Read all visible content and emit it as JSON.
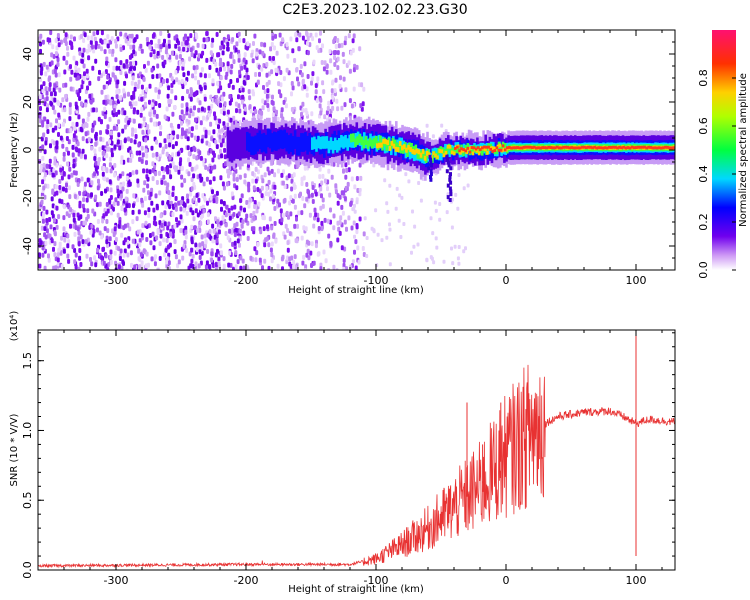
{
  "title": "C2E3.2023.102.02.23.G30",
  "chart_data": [
    {
      "type": "heatmap",
      "xlabel": "Height of straight line (km)",
      "ylabel": "Frequency (Hz)",
      "xlim": [
        -360,
        130
      ],
      "ylim": [
        -50,
        50
      ],
      "xticks": [
        -300,
        -200,
        -100,
        0,
        100
      ],
      "yticks": [
        -40,
        -20,
        0,
        20,
        40
      ],
      "xtick_labels": [
        "-300",
        "-200",
        "-100",
        "0",
        "100"
      ],
      "ytick_labels": [
        "-40",
        "-20",
        "0",
        "20",
        "40"
      ],
      "colorbar": {
        "label": "Normalized spectral amplitude",
        "range": [
          0,
          1
        ],
        "ticks": [
          0.0,
          0.2,
          0.4,
          0.6,
          0.8
        ],
        "tick_labels": [
          "0.0",
          "0.2",
          "0.4",
          "0.6",
          "0.8"
        ]
      },
      "ridge": [
        {
          "x": -210,
          "y": 2
        },
        {
          "x": -180,
          "y": 4
        },
        {
          "x": -160,
          "y": 3
        },
        {
          "x": -140,
          "y": 2
        },
        {
          "x": -120,
          "y": 4
        },
        {
          "x": -100,
          "y": 3
        },
        {
          "x": -80,
          "y": 1
        },
        {
          "x": -60,
          "y": -3
        },
        {
          "x": -45,
          "y": 0
        },
        {
          "x": -20,
          "y": 0
        },
        {
          "x": 0,
          "y": 1
        },
        {
          "x": 40,
          "y": 1
        },
        {
          "x": 80,
          "y": 1
        },
        {
          "x": 100,
          "y": 1
        },
        {
          "x": 130,
          "y": 1
        }
      ]
    },
    {
      "type": "line",
      "xlabel": "Height of straight line (km)",
      "ylabel": "SNR (10 * V/V)",
      "scale_label": "(x10⁴)",
      "xlim": [
        -360,
        130
      ],
      "ylim": [
        0,
        1.72
      ],
      "xticks": [
        -300,
        -200,
        -100,
        0,
        100
      ],
      "yticks": [
        0.0,
        0.5,
        1.0,
        1.5
      ],
      "xtick_labels": [
        "-300",
        "-200",
        "-100",
        "0",
        "100"
      ],
      "ytick_labels": [
        "0.0",
        "0.5",
        "1.0",
        "1.5"
      ],
      "series_color": "#e83232",
      "envelope": [
        {
          "x": -360,
          "y": 0.03
        },
        {
          "x": -200,
          "y": 0.04
        },
        {
          "x": -120,
          "y": 0.04
        },
        {
          "x": -100,
          "y": 0.08
        },
        {
          "x": -80,
          "y": 0.18
        },
        {
          "x": -60,
          "y": 0.3
        },
        {
          "x": -40,
          "y": 0.45
        },
        {
          "x": -20,
          "y": 0.6
        },
        {
          "x": 0,
          "y": 0.82
        },
        {
          "x": 20,
          "y": 1.0
        },
        {
          "x": 40,
          "y": 1.1
        },
        {
          "x": 60,
          "y": 1.13
        },
        {
          "x": 80,
          "y": 1.14
        },
        {
          "x": 90,
          "y": 1.1
        },
        {
          "x": 100,
          "y": 1.05
        },
        {
          "x": 110,
          "y": 1.08
        },
        {
          "x": 130,
          "y": 1.06
        }
      ],
      "spikes": [
        {
          "x": -30,
          "y": 1.2
        },
        {
          "x": -18,
          "y": 0.9
        },
        {
          "x": -4,
          "y": 1.2
        },
        {
          "x": 100,
          "y": 1.72
        },
        {
          "x": 100,
          "y": 0.1
        }
      ]
    }
  ]
}
